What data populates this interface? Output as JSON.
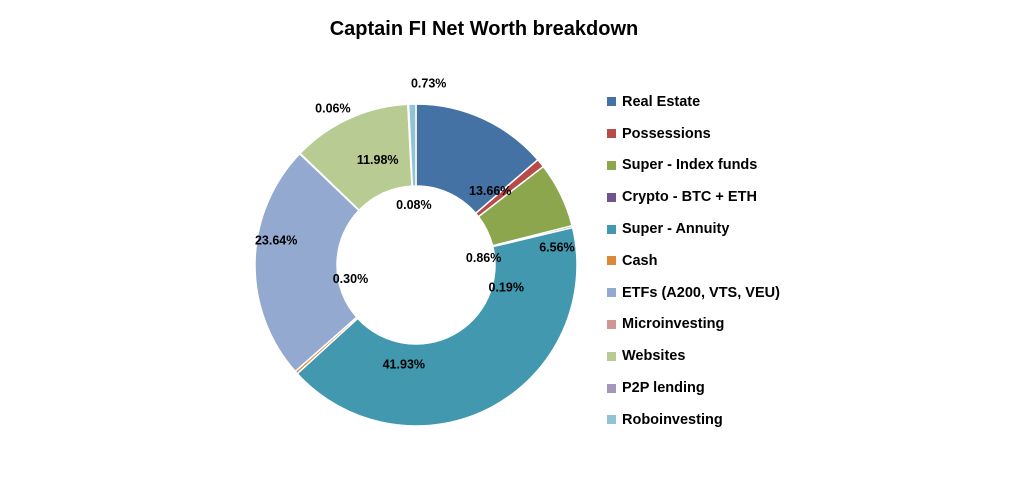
{
  "chart_data": {
    "type": "pie",
    "title": "Captain FI Net Worth breakdown",
    "donut": true,
    "legend_position": "right",
    "series": [
      {
        "name": "Real Estate",
        "value": 13.66,
        "label": "13.66%",
        "color": "#4472A4"
      },
      {
        "name": "Possessions",
        "value": 0.86,
        "label": "0.86%",
        "color": "#B64B49"
      },
      {
        "name": "Super - Index funds",
        "value": 6.56,
        "label": "6.56%",
        "color": "#8BA64C"
      },
      {
        "name": "Crypto - BTC + ETH",
        "value": 0.19,
        "label": "0.19%",
        "color": "#70548F"
      },
      {
        "name": "Super - Annuity",
        "value": 41.93,
        "label": "41.93%",
        "color": "#4198AF"
      },
      {
        "name": "Cash",
        "value": 0.3,
        "label": "0.30%",
        "color": "#DB8939"
      },
      {
        "name": "ETFs (A200, VTS, VEU)",
        "value": 23.64,
        "label": "23.64%",
        "color": "#93A9CF"
      },
      {
        "name": "Microinvesting",
        "value": 0.06,
        "label": "0.06%",
        "color": "#D09694"
      },
      {
        "name": "Websites",
        "value": 11.98,
        "label": "11.98%",
        "color": "#B7CB93"
      },
      {
        "name": "P2P lending",
        "value": 0.08,
        "label": "0.08%",
        "color": "#A597B9"
      },
      {
        "name": "Roboinvesting",
        "value": 0.73,
        "label": "0.73%",
        "color": "#92C3D4"
      }
    ]
  }
}
